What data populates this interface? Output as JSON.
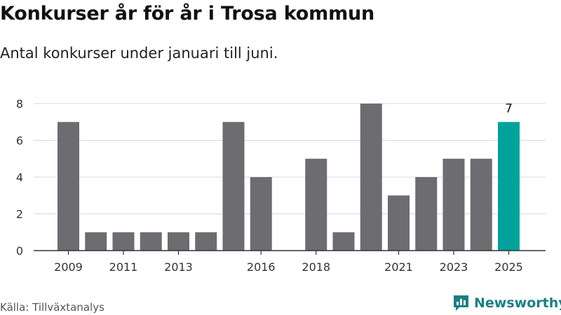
{
  "title": "Konkurser år för år i Trosa kommun",
  "subtitle": "Antal konkurser under januari till juni.",
  "source": "Källa: Tillväxtanalys",
  "brand": "Newsworthy",
  "colors": {
    "bar": "#6d6c71",
    "highlight": "#00a29a",
    "grid": "#d9d9d9",
    "axis": "#333333",
    "brand": "#1a7f86"
  },
  "chart_data": {
    "type": "bar",
    "categories": [
      "2009",
      "2010",
      "2011",
      "2012",
      "2013",
      "2014",
      "2015",
      "2016",
      "2017",
      "2018",
      "2019",
      "2020",
      "2021",
      "2022",
      "2023",
      "2024",
      "2025"
    ],
    "values": [
      7,
      1,
      1,
      1,
      1,
      1,
      7,
      4,
      0,
      5,
      1,
      8,
      3,
      4,
      5,
      5,
      7
    ],
    "x_tick_labels": [
      "2009",
      "2011",
      "2013",
      "2016",
      "2018",
      "2021",
      "2023",
      "2025"
    ],
    "y_ticks": [
      0,
      2,
      4,
      6,
      8
    ],
    "ylim": [
      0,
      8
    ],
    "highlight_category": "2025",
    "data_labels": [
      {
        "category": "2025",
        "text": "7"
      }
    ],
    "grid": true,
    "legend": "none"
  }
}
